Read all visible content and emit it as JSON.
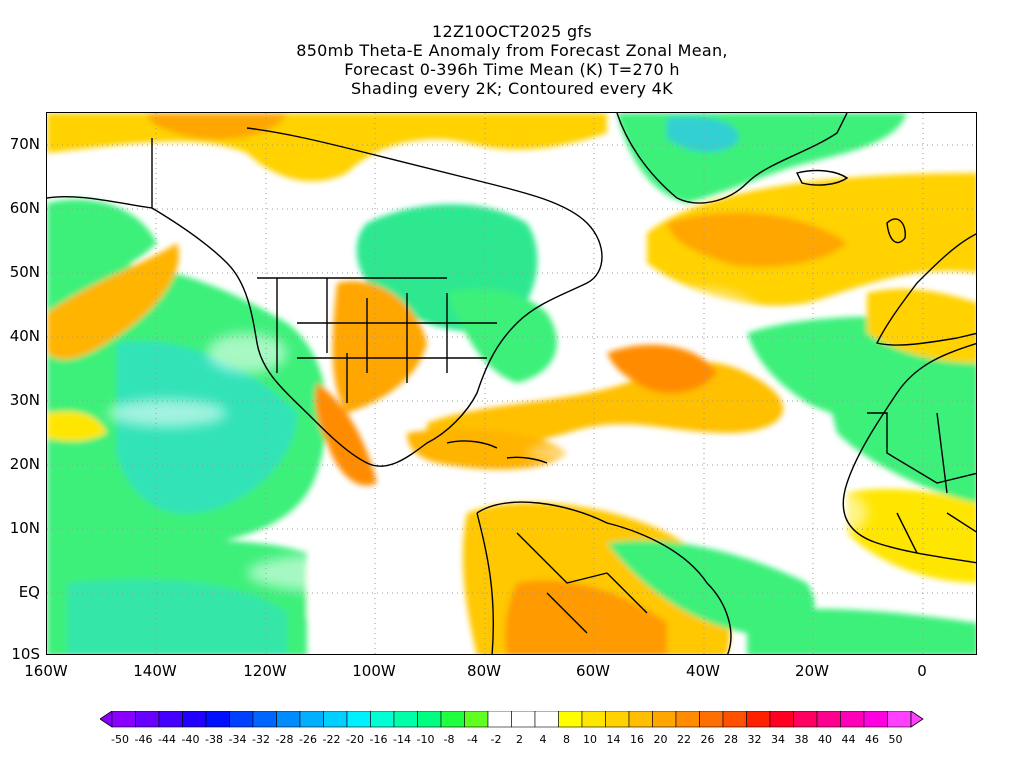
{
  "title": {
    "line1": "12Z10OCT2025 gfs",
    "line2": "850mb Theta-E Anomaly from Forecast Zonal Mean,",
    "line3": "Forecast 0-396h Time Mean (K) T=270 h",
    "line4": "Shading every 2K; Contoured every 4K"
  },
  "lat_labels": [
    "70N",
    "60N",
    "50N",
    "40N",
    "30N",
    "20N",
    "10N",
    "EQ",
    "10S"
  ],
  "lon_labels": [
    "160W",
    "140W",
    "120W",
    "100W",
    "80W",
    "60W",
    "40W",
    "20W",
    "0"
  ],
  "colorbar_labels": [
    "-50",
    "-46",
    "-44",
    "-40",
    "-38",
    "-34",
    "-32",
    "-28",
    "-26",
    "-22",
    "-20",
    "-16",
    "-14",
    "-10",
    "-8",
    "-4",
    "-2",
    "2",
    "4",
    "8",
    "10",
    "14",
    "16",
    "20",
    "22",
    "26",
    "28",
    "32",
    "34",
    "38",
    "40",
    "44",
    "46",
    "50"
  ],
  "colors": [
    "#8a00ff",
    "#6600ff",
    "#4400ff",
    "#2200ff",
    "#0010ff",
    "#0040ff",
    "#0066ff",
    "#008cff",
    "#00b0ff",
    "#00d0ff",
    "#00f0ff",
    "#00ffd4",
    "#00ffa8",
    "#00ff80",
    "#20ff40",
    "#60ff20",
    "#ffffff",
    "#ffffff",
    "#ffffff",
    "#ffff00",
    "#ffe600",
    "#ffd200",
    "#ffbe00",
    "#ffa600",
    "#ff8c00",
    "#ff6e00",
    "#ff5000",
    "#ff2000",
    "#ff0020",
    "#ff0060",
    "#ff0090",
    "#ff00b8",
    "#ff00e0",
    "#ff40ff"
  ],
  "map": {
    "lon_range": [
      -160,
      10
    ],
    "lat_range": [
      -10,
      75
    ]
  }
}
